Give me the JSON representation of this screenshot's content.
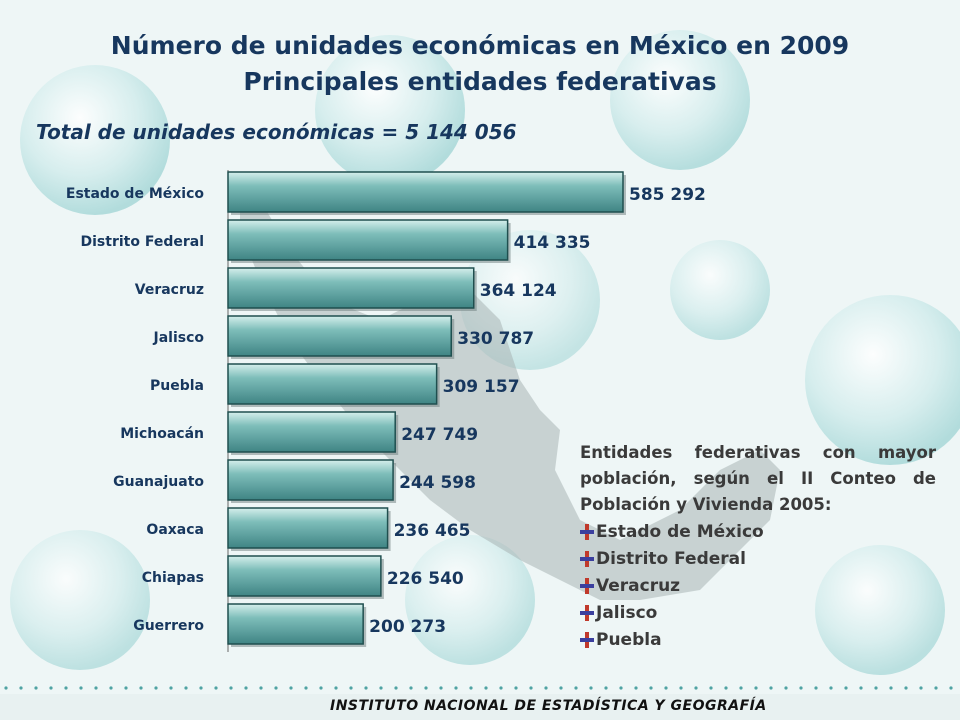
{
  "title_line1": "Número de unidades económicas en México en 2009",
  "title_line2": "Principales entidades federativas",
  "subtitle": "Total de unidades económicas = 5 144 056",
  "chart_data": {
    "type": "bar",
    "orientation": "horizontal",
    "categories": [
      "Estado de México",
      "Distrito Federal",
      "Veracruz",
      "Jalisco",
      "Puebla",
      "Michoacán",
      "Guanajuato",
      "Oaxaca",
      "Chiapas",
      "Guerrero"
    ],
    "values": [
      585292,
      414335,
      364124,
      330787,
      309157,
      247749,
      244598,
      236465,
      226540,
      200273
    ],
    "value_labels": [
      "585 292",
      "414 335",
      "364 124",
      "330 787",
      "309 157",
      "247 749",
      "244 598",
      "236 465",
      "226 540",
      "200 273"
    ],
    "xlim": [
      0,
      585292
    ],
    "colors": {
      "bar": "#4f9a9a",
      "bar_light": "#bfe3e0",
      "bar_border": "#1f4f4f"
    }
  },
  "legend": {
    "text": "Entidades federativas con mayor población, según el II Conteo de Población y Vivienda 2005:",
    "items": [
      "Estado de México",
      "Distrito Federal",
      "Veracruz",
      "Jalisco",
      "Puebla"
    ]
  },
  "footer": {
    "text": "INSTITUTO NACIONAL DE ESTADÍSTICA Y GEOGRAFÍA"
  },
  "colors": {
    "title": "#17375e",
    "background": "#eef6f6"
  },
  "icons": {
    "bullet": "cross-bullet-icon"
  }
}
